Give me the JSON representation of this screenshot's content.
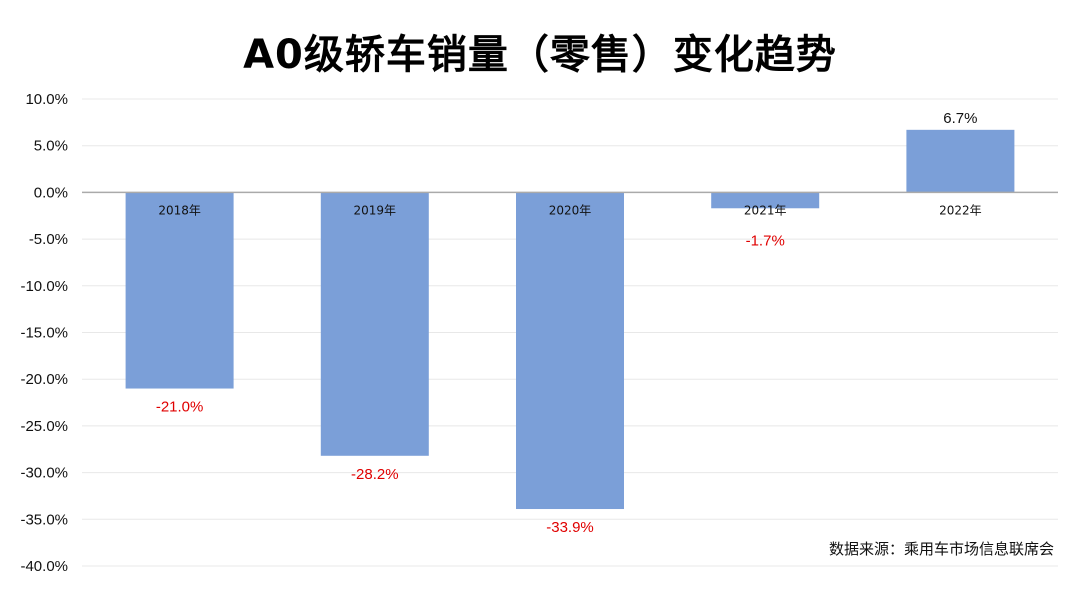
{
  "title": "A0级轿车销量（零售）变化趋势",
  "source": "数据来源：乘用车市场信息联席会",
  "colors": {
    "bar": "#7b9fd8",
    "negative_label": "#e00000",
    "positive_label": "#111111",
    "grid": "#e8e8e8",
    "axis": "#aaaaaa"
  },
  "chart_data": {
    "type": "bar",
    "title": "A0级轿车销量（零售）变化趋势",
    "categories": [
      "2018年",
      "2019年",
      "2020年",
      "2021年",
      "2022年"
    ],
    "values": [
      -21.0,
      -28.2,
      -33.9,
      -1.7,
      6.7
    ],
    "data_labels": [
      "-21.0%",
      "-28.2%",
      "-33.9%",
      "-1.7%",
      "6.7%"
    ],
    "ylim": [
      -40,
      10
    ],
    "yticks": [
      10,
      5,
      0,
      -5,
      -10,
      -15,
      -20,
      -25,
      -30,
      -35,
      -40
    ],
    "ytick_labels": [
      "10.0%",
      "5.0%",
      "0.0%",
      "-5.0%",
      "-10.0%",
      "-15.0%",
      "-20.0%",
      "-25.0%",
      "-30.0%",
      "-35.0%",
      "-40.0%"
    ],
    "grid": true,
    "legend": false,
    "xlabel": "",
    "ylabel": ""
  }
}
